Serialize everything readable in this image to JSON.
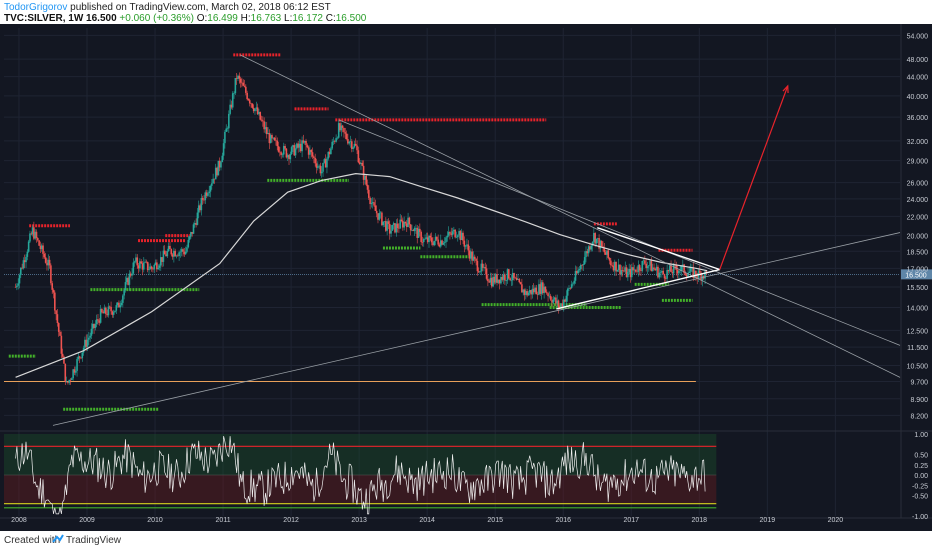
{
  "header": {
    "author": "TodorGrigorov",
    "published": "published on TradingView.com, March 02, 2018 06:12 EST",
    "symbol": "TVC:SILVER, 1W",
    "price": "16.500",
    "change": "+0.060 (+0.36%)",
    "o_label": "O:",
    "o": "16.499",
    "h_label": "H:",
    "h": "16.763",
    "l_label": "L:",
    "l": "16.172",
    "c_label": "C:",
    "c": "16.500"
  },
  "footer": {
    "created_label": "Created with",
    "brand": "TradingView"
  },
  "colors": {
    "background": "#131722",
    "up": "#26a69a",
    "down": "#ef5350",
    "resistance": "#e8232b",
    "support": "#43b02a",
    "ma": "#d8d8d8",
    "trendline": "#9aa0a6",
    "arrow": "#e8232b",
    "oscillator": "#f0f0f0",
    "current_price_tag": "#5f86a8"
  },
  "chart_data": [
    {
      "type": "line",
      "title": "",
      "price_axis_ticks": [
        "54.000",
        "48.000",
        "44.000",
        "40.000",
        "36.000",
        "32.000",
        "29.000",
        "26.000",
        "24.000",
        "22.000",
        "20.000",
        "18.500",
        "17.000",
        "15.500",
        "14.000",
        "12.500",
        "11.500",
        "10.500",
        "9.700",
        "8.900",
        "8.200"
      ],
      "price_axis_scale": "log",
      "time_axis_ticks": [
        "2008",
        "2009",
        "2010",
        "2011",
        "2012",
        "2013",
        "2014",
        "2015",
        "2016",
        "2017",
        "2018",
        "2019",
        "2020"
      ],
      "current_price": "16.500",
      "series": [
        {
          "name": "",
          "x": [
            "2008-01",
            "2008-04",
            "2008-07",
            "2008-10",
            "2009-01",
            "2009-04",
            "2009-07",
            "2009-10",
            "2010-01",
            "2010-04",
            "2010-07",
            "2010-10",
            "2011-01",
            "2011-04",
            "2011-07",
            "2011-10",
            "2012-01",
            "2012-04",
            "2012-07",
            "2012-10",
            "2013-01",
            "2013-04",
            "2013-07",
            "2013-10",
            "2014-01",
            "2014-04",
            "2014-07",
            "2014-10",
            "2015-01",
            "2015-04",
            "2015-07",
            "2015-10",
            "2016-01",
            "2016-04",
            "2016-07",
            "2016-10",
            "2017-01",
            "2017-04",
            "2017-07",
            "2017-10",
            "2018-01",
            "2018-03"
          ],
          "y": [
            15.5,
            20.5,
            17.0,
            9.5,
            11.5,
            13.5,
            14.0,
            17.5,
            17.0,
            18.5,
            18.5,
            24.0,
            28.5,
            44.0,
            38.0,
            32.0,
            30.0,
            31.5,
            27.5,
            34.0,
            31.0,
            23.0,
            20.5,
            21.5,
            19.5,
            19.5,
            20.5,
            17.5,
            16.0,
            16.5,
            15.0,
            15.5,
            14.0,
            16.5,
            20.0,
            17.5,
            16.5,
            17.5,
            16.5,
            17.0,
            16.5,
            16.5
          ]
        },
        {
          "name": "",
          "x": [
            "2008-01",
            "2009-01",
            "2010-01",
            "2011-01",
            "2011-07",
            "2012-01",
            "2012-07",
            "2013-01",
            "2013-07",
            "2014-01",
            "2014-07",
            "2015-01",
            "2015-07",
            "2016-01",
            "2016-07",
            "2017-01",
            "2017-07",
            "2018-01",
            "2018-03"
          ],
          "y": [
            9.9,
            11.3,
            13.7,
            17.4,
            21.5,
            24.8,
            26.3,
            27.2,
            26.8,
            25.4,
            24.1,
            22.7,
            21.4,
            20.1,
            19.1,
            18.2,
            17.5,
            17.0,
            16.8
          ]
        }
      ],
      "resistance_levels": [
        21.0,
        19.5,
        20.0,
        49.0,
        37.5,
        35.5,
        21.2,
        18.6
      ],
      "support_levels": [
        11.0,
        15.3,
        26.3,
        18.8,
        18.0,
        14.2,
        14.0,
        15.7,
        14.5
      ],
      "horizontal_line": 9.7,
      "arrow_target": 42.0
    },
    {
      "type": "area",
      "title": "",
      "y_axis_ticks": [
        "1.00",
        "0.50",
        "0.25",
        "0.00",
        "-0.25",
        "-0.50",
        "-1.00"
      ],
      "ylim": [
        -1.0,
        1.0
      ],
      "reference_lines": [
        0.7,
        -0.7,
        -0.8
      ]
    }
  ]
}
